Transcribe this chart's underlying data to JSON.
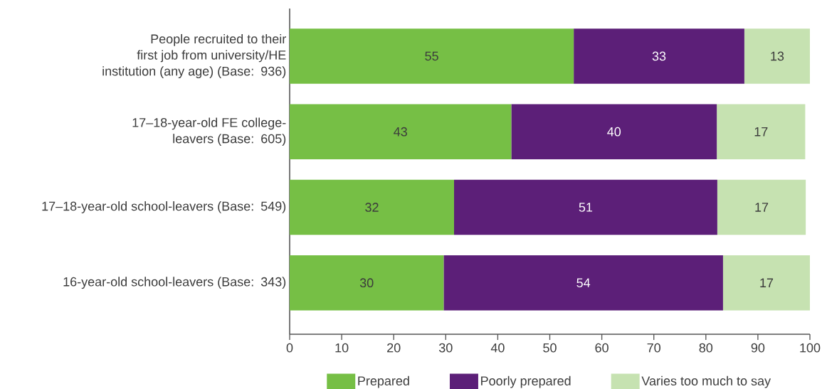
{
  "chart_data": {
    "type": "bar",
    "orientation": "horizontal",
    "stacked": true,
    "categories": [
      "People recruited to their first job from university/HE institution (any age) (Base: 936)",
      "17–18-year-old FE college-leavers (Base: 605)",
      "17–18-year-old school-leavers (Base: 549)",
      "16-year-old school-leavers (Base: 343)"
    ],
    "series": [
      {
        "name": "Prepared",
        "color": "#76bf45",
        "values": [
          54.6,
          42.6,
          31.6,
          29.6
        ],
        "value_labels": [
          "55",
          "43",
          "32",
          "30"
        ]
      },
      {
        "name": "Poorly prepared",
        "color": "#5c1f78",
        "values": [
          32.8,
          39.5,
          50.6,
          53.7
        ],
        "value_labels": [
          "33",
          "40",
          "51",
          "54"
        ]
      },
      {
        "name": "Varies too much to say",
        "color": "#c6e2b1",
        "values": [
          12.6,
          17.0,
          17.0,
          16.7
        ],
        "value_labels": [
          "13",
          "17",
          "17",
          "17"
        ]
      }
    ],
    "xlim": [
      0,
      100
    ],
    "xticks": [
      0,
      10,
      20,
      30,
      40,
      50,
      60,
      70,
      80,
      90,
      100
    ],
    "legend": "bottom"
  }
}
